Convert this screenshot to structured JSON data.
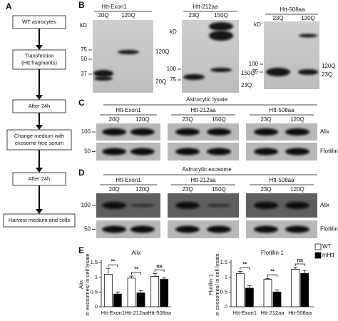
{
  "panel_a": {
    "label": "A",
    "steps": [
      [
        "WT astrocytes"
      ],
      [
        "Transfection",
        "(Htt fragments)"
      ],
      [
        "After 24h"
      ],
      [
        "Change medium with",
        "exosome free serum"
      ],
      [
        "After 24h"
      ],
      [
        "Harvest medium and cells"
      ]
    ]
  },
  "panel_b": {
    "label": "B",
    "blots": [
      {
        "title": "Htt-Exon1",
        "kd": "kD",
        "lanes": [
          "20Q",
          "120Q"
        ],
        "markers": [
          75,
          50,
          37
        ],
        "band_labels": [
          "120Q",
          "20Q"
        ]
      },
      {
        "title": "Htt-212aa",
        "kd": "kD",
        "lanes": [
          "23Q",
          "150Q"
        ],
        "markers": [
          100,
          75
        ],
        "band_labels": [
          "150Q",
          "23Q"
        ]
      },
      {
        "title": "Htt-508aa",
        "kd": "kD",
        "lanes": [
          "23Q",
          "120Q"
        ],
        "markers": [
          100,
          75
        ],
        "band_labels": [
          "120Q",
          "23Q"
        ]
      }
    ]
  },
  "panel_c": {
    "label": "C",
    "heading": "Astrocytic lysate",
    "groups": [
      {
        "title": "Htt-Exon1",
        "lanes": [
          "20Q",
          "120Q"
        ]
      },
      {
        "title": "Htt-212aa",
        "lanes": [
          "23Q",
          "150Q"
        ]
      },
      {
        "title": "Htt-508aa",
        "lanes": [
          "23Q",
          "120Q"
        ]
      }
    ],
    "markers": [
      100,
      50
    ],
    "rows": [
      "Alix",
      "Flotillin-1"
    ]
  },
  "panel_d": {
    "label": "D",
    "heading": "Astrocytic exosome",
    "groups": [
      {
        "title": "Htt-Exon1",
        "lanes": [
          "20Q",
          "120Q"
        ]
      },
      {
        "title": "Htt-212aa",
        "lanes": [
          "23Q",
          "150Q"
        ]
      },
      {
        "title": "Htt-508aa",
        "lanes": [
          "23Q",
          "120Q"
        ]
      }
    ],
    "markers": [
      100,
      50
    ],
    "rows": [
      "Alix",
      "Flotillin-1"
    ]
  },
  "panel_e": {
    "label": "E"
  },
  "chart_data": [
    {
      "type": "bar",
      "title": "Alix",
      "y_label": [
        "Alix",
        "in exosomes/ in cell lysate"
      ],
      "categories": [
        "Htt-Exon1",
        "Htt-212aa",
        "Htt-508aa"
      ],
      "series": [
        {
          "name": "WT",
          "color": "#ffffff",
          "values": [
            1.1,
            0.97,
            1.03
          ],
          "errors": [
            0.2,
            0.07,
            0.1
          ]
        },
        {
          "name": "mHtt",
          "color": "#000000",
          "values": [
            0.43,
            0.47,
            0.93
          ],
          "errors": [
            0.07,
            0.08,
            0.05
          ]
        }
      ],
      "annotations": [
        "**",
        "**",
        "ns"
      ],
      "ylim": [
        0,
        1.5
      ],
      "yticks": [
        0,
        0.5,
        1,
        1.5
      ]
    },
    {
      "type": "bar",
      "title": "Flotillin-1",
      "y_label": [
        "Flotillin-1",
        "in exosomes/ in cell lysate"
      ],
      "categories": [
        "Htt-Exon1",
        "Htt-212aa",
        "Htt-508aa"
      ],
      "series": [
        {
          "name": "WT",
          "color": "#ffffff",
          "values": [
            1.13,
            0.93,
            1.27
          ],
          "errors": [
            0.07,
            0.03,
            0.06
          ]
        },
        {
          "name": "mHtt",
          "color": "#000000",
          "values": [
            0.63,
            0.5,
            1.13
          ],
          "errors": [
            0.08,
            0.07,
            0.1
          ]
        }
      ],
      "annotations": [
        "**",
        "**",
        "ns"
      ],
      "ylim": [
        0,
        1.5
      ],
      "yticks": [
        0,
        0.5,
        1,
        1.5
      ]
    }
  ]
}
